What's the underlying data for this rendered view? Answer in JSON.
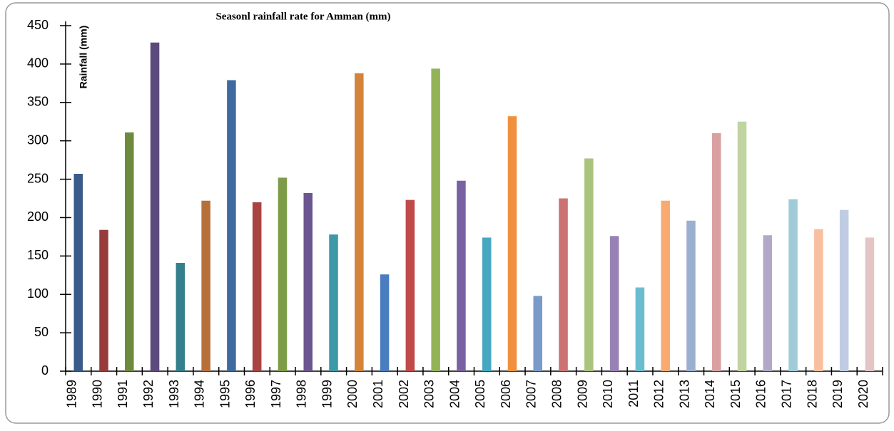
{
  "chart_data": {
    "type": "bar",
    "title": "Seasonl rainfall rate for Amman (mm)",
    "y_label": "Rainfall (mm)",
    "categories": [
      "1989",
      "1990",
      "1991",
      "1992",
      "1993",
      "1994",
      "1995",
      "1996",
      "1997",
      "1998",
      "1999",
      "2000",
      "2001",
      "2002",
      "2003",
      "2004",
      "2005",
      "2006",
      "2007",
      "2008",
      "2009",
      "2010",
      "2011",
      "2012",
      "2013",
      "2014",
      "2015",
      "2016",
      "2017",
      "2018",
      "2019",
      "2020"
    ],
    "values": [
      257,
      184,
      311,
      428,
      141,
      222,
      379,
      220,
      252,
      232,
      178,
      388,
      126,
      223,
      394,
      248,
      174,
      332,
      98,
      225,
      277,
      176,
      109,
      222,
      196,
      310,
      325,
      177,
      224,
      185,
      210,
      174
    ],
    "colors": [
      "#3a5a8a",
      "#963c3a",
      "#6e8a3e",
      "#5c4a7c",
      "#337f8c",
      "#b8703a",
      "#3f6aa0",
      "#a84442",
      "#7e9c48",
      "#6c5690",
      "#3d98a8",
      "#d2843a",
      "#4a7cc0",
      "#c04a48",
      "#94b258",
      "#7a62a2",
      "#46a8c0",
      "#f0903e",
      "#7a9ac8",
      "#cc7272",
      "#aac47e",
      "#9882b4",
      "#6cbcd0",
      "#f8aa70",
      "#9ab0d0",
      "#d8a0a0",
      "#c0d4a0",
      "#b4a8c8",
      "#a0ccd8",
      "#f8c0a0",
      "#c0cce4",
      "#e4c4c4"
    ],
    "ylim": [
      0,
      450
    ],
    "yticks": [
      0,
      50,
      100,
      150,
      200,
      250,
      300,
      350,
      400,
      450
    ]
  }
}
